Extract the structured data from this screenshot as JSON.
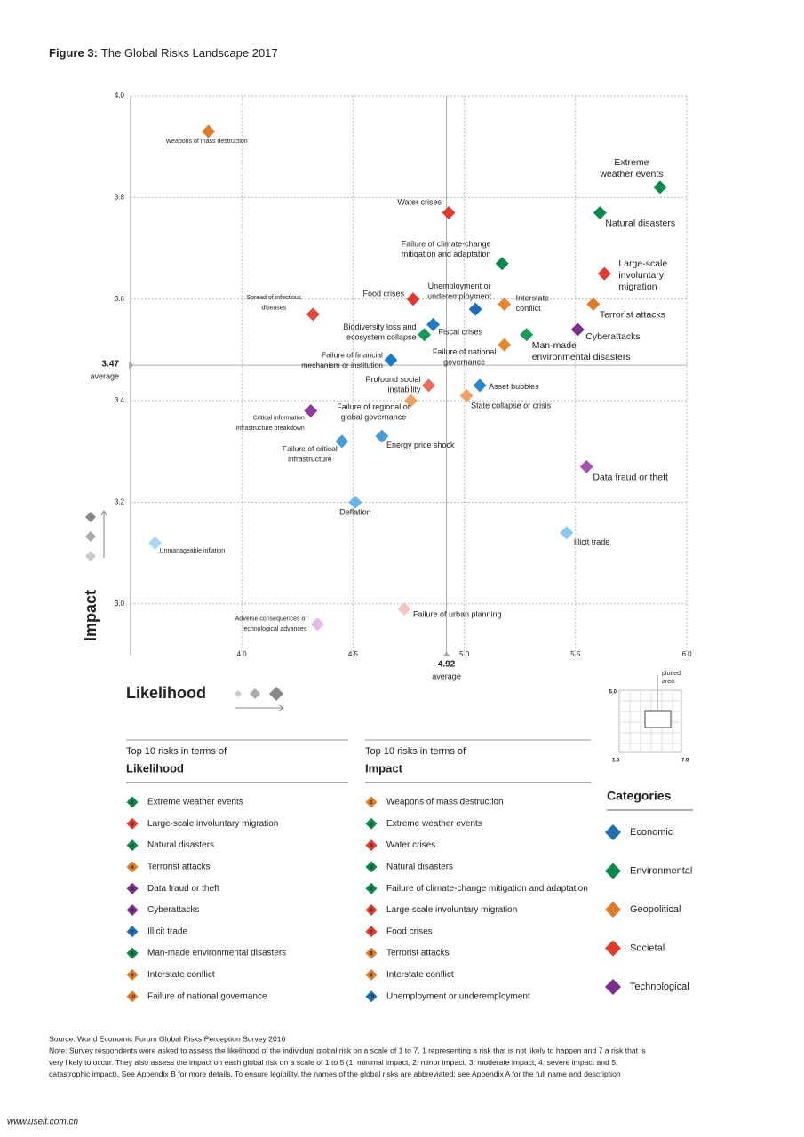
{
  "title_prefix": "Figure 3:",
  "title": "The Global Risks Landscape 2017",
  "chart_data": {
    "type": "scatter",
    "xlabel": "Likelihood",
    "ylabel": "Impact",
    "xlim": [
      3.5,
      6.0
    ],
    "ylim": [
      2.9,
      4.0
    ],
    "xticks": [
      {
        "value": 4,
        "label": "4.0"
      },
      4.5,
      {
        "value": 5,
        "label": "5.0"
      },
      5.5,
      {
        "value": 6,
        "label": "6.0"
      }
    ],
    "yticks": [
      {
        "value": 3,
        "label": "3.0"
      },
      3.2,
      3.4,
      3.6,
      3.8,
      {
        "value": 4,
        "label": "4.0"
      }
    ],
    "grid": true,
    "x_average": {
      "value": 4.92,
      "text": "average"
    },
    "y_average": {
      "value": 3.47,
      "text": "average"
    },
    "series": [
      {
        "name": "Economic",
        "color": "#1f6fb5",
        "labels": [
          [
            "Unemployment or",
            "underemployment"
          ],
          [
            "Fiscal crises"
          ],
          [
            "Failure of financial",
            "mechanism or institution"
          ],
          [
            "Asset bubbles"
          ],
          [
            "Energy price shock"
          ],
          [
            "Failure of critical",
            "infrastructure"
          ],
          [
            "Deflation"
          ],
          [
            "Illicit trade"
          ],
          [
            "Unmanageable inflation"
          ]
        ],
        "x": [
          5.05,
          4.86,
          4.67,
          5.07,
          4.63,
          4.45,
          4.51,
          5.46,
          3.61
        ],
        "y": [
          3.58,
          3.55,
          3.48,
          3.43,
          3.33,
          3.32,
          3.2,
          3.14,
          3.12
        ],
        "colors": [
          "#1a6fb8",
          "#1f7cc4",
          "#1f7cc4",
          "#2a86cc",
          "#4a9ad8",
          "#4a9ad8",
          "#6ab6e6",
          "#88c8ee",
          "#a8d8f4"
        ]
      },
      {
        "name": "Environmental",
        "color": "#0a8a4a",
        "labels": [
          [
            "Extreme",
            "weather events"
          ],
          [
            "Natural disasters"
          ],
          [
            "Failure of climate-change",
            "mitigation and adaptation"
          ],
          [
            "Biodiversity loss and",
            "ecosystem collapse"
          ],
          [
            "Man-made",
            "environmental disasters"
          ]
        ],
        "x": [
          5.88,
          5.61,
          5.17,
          4.82,
          5.28
        ],
        "y": [
          3.82,
          3.77,
          3.67,
          3.53,
          3.53
        ],
        "colors": [
          "#0a8a4a",
          "#0a8a4a",
          "#0a8a4a",
          "#1a9a5a",
          "#1a9a5a"
        ]
      },
      {
        "name": "Geopolitical",
        "color": "#e07b2a",
        "labels": [
          [
            "Weapons of mass destruction"
          ],
          [
            "Terrorist attacks"
          ],
          [
            "Interstate",
            "conflict"
          ],
          [
            "Failure of national",
            "governance"
          ],
          [
            "State collapse or crisis"
          ],
          [
            "Failure of regional or",
            "global governance"
          ]
        ],
        "x": [
          3.85,
          5.58,
          5.18,
          5.18,
          5.01,
          4.76
        ],
        "y": [
          3.93,
          3.59,
          3.59,
          3.51,
          3.41,
          3.4
        ],
        "colors": [
          "#e07b2a",
          "#e07b2a",
          "#e8862e",
          "#e8862e",
          "#eda060",
          "#eda060"
        ]
      },
      {
        "name": "Societal",
        "color": "#e03a2f",
        "labels": [
          [
            "Water crises"
          ],
          [
            "Large-scale",
            "involuntary",
            "migration"
          ],
          [
            "Food crises"
          ],
          [
            "Spread of infectious",
            "diseases"
          ],
          [
            "Profound social",
            "instability"
          ],
          [
            "Failure of urban planning"
          ]
        ],
        "x": [
          4.93,
          5.63,
          4.77,
          4.32,
          4.84,
          4.73
        ],
        "y": [
          3.77,
          3.65,
          3.6,
          3.57,
          3.43,
          2.99
        ],
        "colors": [
          "#e03a2f",
          "#e03a2f",
          "#e03a2f",
          "#e04a3a",
          "#e86a5a",
          "#f5c4c4"
        ]
      },
      {
        "name": "Technological",
        "color": "#7b2d8b",
        "labels": [
          [
            "Cyberattacks"
          ],
          [
            "Critical information",
            "infrastructure breakdown"
          ],
          [
            "Data fraud or theft"
          ],
          [
            "Adverse consequences of",
            "technological advances"
          ]
        ],
        "x": [
          5.51,
          4.31,
          5.55,
          4.34
        ],
        "y": [
          3.54,
          3.38,
          3.27,
          2.96
        ],
        "colors": [
          "#7b2d8b",
          "#8e3a9e",
          "#a552b5",
          "#e9b8e6"
        ]
      }
    ]
  },
  "inset": {
    "label": [
      "plotted",
      "area"
    ],
    "y_top": "5.0",
    "x_left": "1.0",
    "x_right": "7.0"
  },
  "categories_title": "Categories",
  "lists": [
    {
      "heading": "Top 10 risks in terms of",
      "title": "Likelihood",
      "items": [
        {
          "rank": 1,
          "name": "Extreme weather events",
          "color": "#0a8a4a"
        },
        {
          "rank": 2,
          "name": "Large-scale involuntary migration",
          "color": "#e03a2f"
        },
        {
          "rank": 3,
          "name": "Natural disasters",
          "color": "#0a8a4a"
        },
        {
          "rank": 4,
          "name": "Terrorist attacks",
          "color": "#e07b2a"
        },
        {
          "rank": 5,
          "name": "Data fraud or theft",
          "color": "#7b2d8b"
        },
        {
          "rank": 6,
          "name": "Cyberattacks",
          "color": "#7b2d8b"
        },
        {
          "rank": 7,
          "name": "Illicit trade",
          "color": "#1f6fb5"
        },
        {
          "rank": 8,
          "name": "Man-made environmental disasters",
          "color": "#0a8a4a"
        },
        {
          "rank": 9,
          "name": "Interstate conflict",
          "color": "#e07b2a"
        },
        {
          "rank": 10,
          "name": "Failure of national governance",
          "color": "#e07b2a"
        }
      ]
    },
    {
      "heading": "Top 10 risks in terms of",
      "title": "Impact",
      "items": [
        {
          "rank": 1,
          "name": "Weapons of mass destruction",
          "color": "#e07b2a"
        },
        {
          "rank": 2,
          "name": "Extreme weather events",
          "color": "#0a8a4a"
        },
        {
          "rank": 3,
          "name": "Water crises",
          "color": "#e03a2f"
        },
        {
          "rank": 4,
          "name": "Natural disasters",
          "color": "#0a8a4a"
        },
        {
          "rank": 5,
          "name": "Failure of climate-change mitigation and adaptation",
          "color": "#0a8a4a"
        },
        {
          "rank": 6,
          "name": "Large-scale involuntary migration",
          "color": "#e03a2f"
        },
        {
          "rank": 7,
          "name": "Food crises",
          "color": "#e03a2f"
        },
        {
          "rank": 8,
          "name": "Terrorist attacks",
          "color": "#e07b2a"
        },
        {
          "rank": 9,
          "name": "Interstate conflict",
          "color": "#e07b2a"
        },
        {
          "rank": 10,
          "name": "Unemployment or underemployment",
          "color": "#1f6fb5"
        }
      ]
    }
  ],
  "source": [
    "Source:  World Economic Forum Global Risks Perception Survey 2016",
    "Note: Survey respondents were asked to assess the likelihood of the individual global risk on a scale of 1 to 7, 1 representing a risk that is not likely to happen and 7 a risk that is",
    "very likely to occur. They also assess the impact on each global risk on a scale of 1 to 5 (1: minimal impact, 2: minor impact, 3: moderate impact, 4: severe impact and 5:",
    "catastrophic impact). See Appendix B for more details. To ensure legibility, the names of the global risks are abbreviated; see Appendix A for the full name and description"
  ],
  "watermark": "www.uselt.com.cn"
}
